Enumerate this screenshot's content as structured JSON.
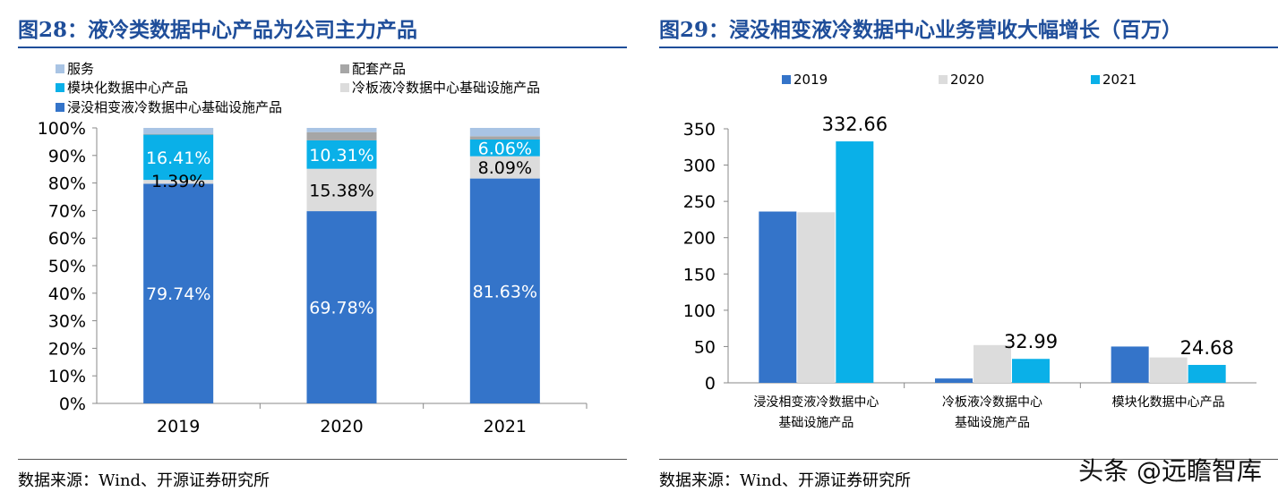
{
  "left": {
    "title": "图28：液冷类数据中心产品为公司主力产品",
    "source": "数据来源：Wind、开源证券研究所"
  },
  "right": {
    "title": "图29：浸没相变液冷数据中心业务营收大幅增长（百万）",
    "source": "数据来源：Wind、开源证券研究所"
  },
  "watermark": "头条 @远瞻智库",
  "colors": {
    "title_blue": "#1f4e9a",
    "immersion": "#3474c9",
    "coldplate": "#dcdcdc",
    "modular": "#0ab0e8",
    "supporting": "#a6a6a6",
    "service": "#a9c4e4",
    "series_2019": "#3474c9",
    "series_2020": "#dcdcdc",
    "series_2021": "#0ab0e8"
  },
  "chart_data": [
    {
      "type": "bar",
      "stacked": true,
      "title": "液冷类数据中心产品为公司主力产品",
      "categories": [
        "2019",
        "2020",
        "2021"
      ],
      "ylim": [
        0,
        100
      ],
      "yticks": [
        "0%",
        "10%",
        "20%",
        "30%",
        "40%",
        "50%",
        "60%",
        "70%",
        "80%",
        "90%",
        "100%"
      ],
      "legend_position": "top-left",
      "series": [
        {
          "name": "浸没相变液冷数据中心基础设施产品",
          "key": "immersion",
          "values": [
            79.74,
            69.78,
            81.63
          ],
          "labels": [
            "79.74%",
            "69.78%",
            "81.63%"
          ],
          "label_color": "#ffffff"
        },
        {
          "name": "冷板液冷数据中心基础设施产品",
          "key": "coldplate",
          "values": [
            1.39,
            15.38,
            8.09
          ],
          "labels": [
            "1.39%",
            "15.38%",
            "8.09%"
          ],
          "label_color": "#000000"
        },
        {
          "name": "模块化数据中心产品",
          "key": "modular",
          "values": [
            16.41,
            10.31,
            6.06
          ],
          "labels": [
            "16.41%",
            "10.31%",
            "6.06%"
          ],
          "label_color": "#ffffff"
        },
        {
          "name": "配套产品",
          "key": "supporting",
          "values": [
            0.3,
            3.0,
            1.2
          ],
          "labels": [
            "",
            "",
            ""
          ]
        },
        {
          "name": "服务",
          "key": "service",
          "values": [
            2.16,
            1.53,
            3.02
          ],
          "labels": [
            "",
            "",
            ""
          ]
        }
      ],
      "legend_order": [
        "服务",
        "配套产品",
        "模块化数据中心产品",
        "冷板液冷数据中心基础设施产品",
        "浸没相变液冷数据中心基础设施产品"
      ]
    },
    {
      "type": "bar",
      "title": "浸没相变液冷数据中心业务营收大幅增长（百万）",
      "categories": [
        "浸没相变液冷数据中心\n基础设施产品",
        "冷板液冷数据中心\n基础设施产品",
        "模块化数据中心产品"
      ],
      "ylim": [
        0,
        350
      ],
      "yticks": [
        "0",
        "50",
        "100",
        "150",
        "200",
        "250",
        "300",
        "350"
      ],
      "legend_position": "top",
      "series": [
        {
          "name": "2019",
          "key": "series_2019",
          "values": [
            236,
            6,
            50
          ],
          "labels": [
            "",
            "",
            ""
          ]
        },
        {
          "name": "2020",
          "key": "series_2020",
          "values": [
            235,
            52,
            35
          ],
          "labels": [
            "",
            "",
            ""
          ]
        },
        {
          "name": "2021",
          "key": "series_2021",
          "values": [
            332.66,
            32.99,
            24.68
          ],
          "labels": [
            "332.66",
            "32.99",
            "24.68"
          ]
        }
      ]
    }
  ]
}
